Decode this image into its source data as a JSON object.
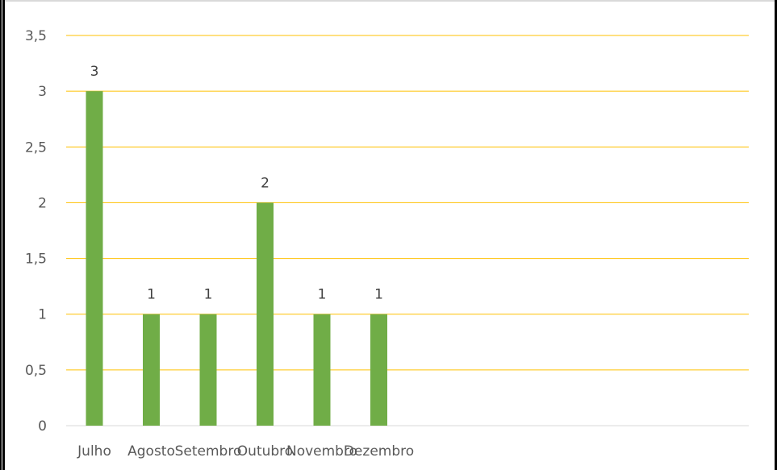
{
  "chart_data": {
    "type": "bar",
    "categories": [
      "Julho",
      "Agosto",
      "Setembro",
      "Outubro",
      "Novembro",
      "Dezembro"
    ],
    "values": [
      3,
      1,
      1,
      2,
      1,
      1
    ],
    "title": "",
    "xlabel": "",
    "ylabel": "",
    "ylim": [
      0,
      3.5
    ],
    "yticks": [
      "0",
      "0,5",
      "1",
      "1,5",
      "2",
      "2,5",
      "3",
      "3,5"
    ],
    "data_labels": [
      "3",
      "1",
      "1",
      "2",
      "1",
      "1"
    ],
    "grid": true,
    "legend": "none",
    "colors": {
      "bar": "#70ad47",
      "grid": "#ffc000",
      "axis": "#d9d9d9"
    }
  }
}
